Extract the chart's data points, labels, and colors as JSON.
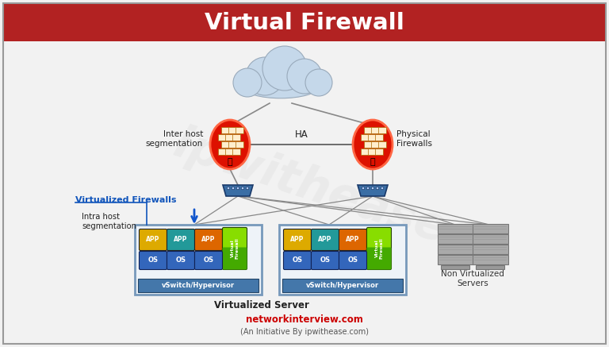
{
  "title": "Virtual Firewall",
  "title_color": "#FFFFFF",
  "title_bg": "#B22222",
  "bg_color": "#F2F2F2",
  "border_color": "#999999",
  "label_virtualized": "Virtualized Firewalls",
  "label_virtualized_color": "#1155BB",
  "label_intra": "Intra host\nsegmentation",
  "label_inter": "Inter host\nsegmentation",
  "label_ha": "HA",
  "label_physical": "Physical\nFirewalls",
  "label_non_virt": "Non Virtualized\nServers",
  "label_virt_server": "Virtualized Server",
  "label_vswitch": "vSwitch/Hypervisor",
  "label_website": "networkinterview.com",
  "label_website_color": "#CC0000",
  "label_initiative": "(An Initiative By ipwithease.com)",
  "app_colors": [
    "#DDAA00",
    "#229999",
    "#DD6600"
  ],
  "os_color": "#3366BB",
  "cloud_color": "#C5D8EA",
  "cloud_edge": "#99AABB",
  "fw_color": "#DD1100",
  "fw_edge": "#FF4400",
  "router_color": "#3A6EA5",
  "router_edge": "#1A3A6A",
  "vf_color_top": "#55CC00",
  "vf_color_bot": "#33AA00",
  "server_color": "#AAAAAA",
  "server_edge": "#777777",
  "box_bg": "#EEF3F8",
  "box_edge": "#7799BB",
  "vswitch_color": "#4477AA",
  "line_color": "#888888",
  "watermark": "ipwithease",
  "watermark_color": "#CCCCCC"
}
